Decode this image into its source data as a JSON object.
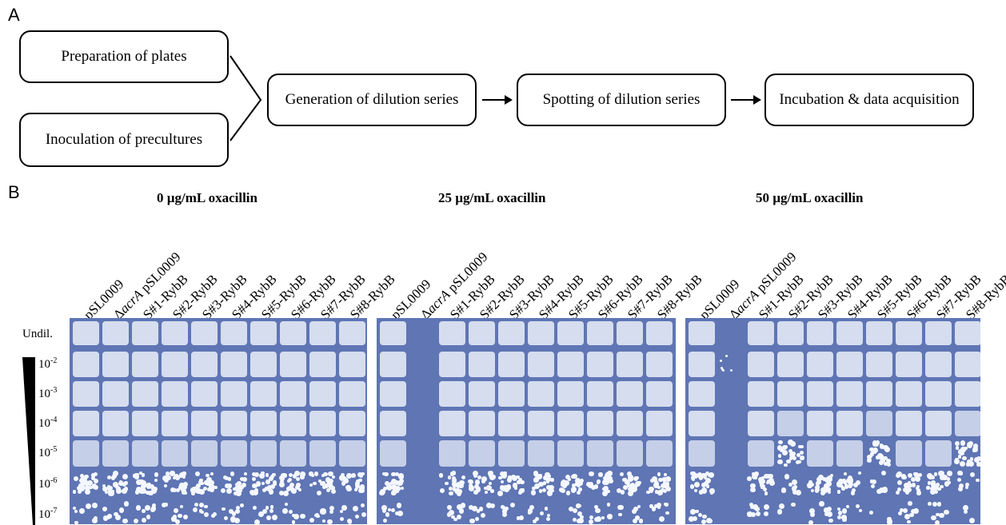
{
  "panel_a": {
    "label": "A",
    "steps": {
      "prep_plates": "Preparation of plates",
      "inoculation": "Inoculation of precultures",
      "dilution": "Generation of dilution series",
      "spotting": "Spotting of dilution series",
      "incubation": "Incubation & data acquisition"
    }
  },
  "panel_b": {
    "label": "B",
    "conditions": [
      "0 µg/mL oxacillin",
      "25 µg/mL oxacillin",
      "50 µg/mL oxacillin"
    ],
    "strains": [
      {
        "prefix": "",
        "italic": "",
        "suffix": "pSL0009"
      },
      {
        "prefix": "Δ",
        "italic": "acrA",
        "suffix": " pSL0009"
      },
      {
        "prefix": "",
        "italic": "",
        "suffix": "S#1-RybB"
      },
      {
        "prefix": "",
        "italic": "",
        "suffix": "S#2-RybB"
      },
      {
        "prefix": "",
        "italic": "",
        "suffix": "S#3-RybB"
      },
      {
        "prefix": "",
        "italic": "",
        "suffix": "S#4-RybB"
      },
      {
        "prefix": "",
        "italic": "",
        "suffix": "S#5-RybB"
      },
      {
        "prefix": "",
        "italic": "",
        "suffix": "S#6-RybB"
      },
      {
        "prefix": "",
        "italic": "",
        "suffix": "S#7-RybB"
      },
      {
        "prefix": "",
        "italic": "",
        "suffix": "S#8-RybB"
      }
    ],
    "undiluted_label": "Undil.",
    "dilutions": [
      {
        "base": "10",
        "exp": "-2"
      },
      {
        "base": "10",
        "exp": "-3"
      },
      {
        "base": "10",
        "exp": "-4"
      },
      {
        "base": "10",
        "exp": "-5"
      },
      {
        "base": "10",
        "exp": "-6"
      },
      {
        "base": "10",
        "exp": "-7"
      }
    ],
    "colors": {
      "plate": "#5f75b4",
      "growth": "#dfe6f4",
      "colony": "#f4f7ff"
    }
  }
}
